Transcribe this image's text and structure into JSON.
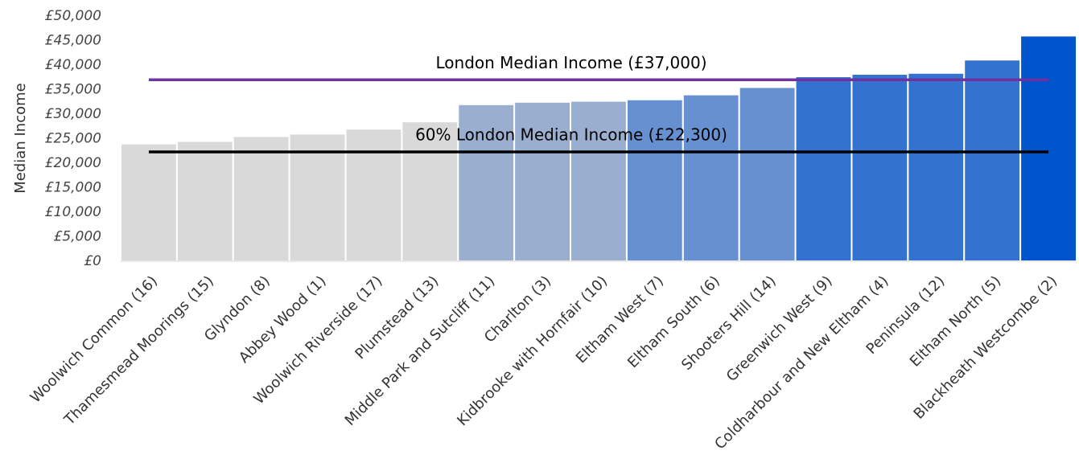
{
  "chart_data": {
    "type": "bar",
    "y_label": "Median Income",
    "categories": [
      "Woolwich Common (16)",
      "Thamesmead Moorings (15)",
      "Glyndon (8)",
      "Abbey Wood (1)",
      "Woolwich Riverside (17)",
      "Plumstead (13)",
      "Middle Park and Sutcliff (11)",
      "Charlton (3)",
      "Kidbrooke with Hornfair (10)",
      "Eltham West (7)",
      "Eltham South (6)",
      "Shooters Hill (14)",
      "Greenwich West (9)",
      "Coldharbour and New Eltham (4)",
      "Peninsula (12)",
      "Eltham North (5)",
      "Blackheath Westcombe (2)"
    ],
    "values": [
      24000,
      24500,
      25500,
      26000,
      27000,
      28500,
      32000,
      32500,
      32700,
      33000,
      34000,
      35500,
      37700,
      38200,
      38400,
      41100,
      46000
    ],
    "colors": [
      "#d9d9d9",
      "#d9d9d9",
      "#d9d9d9",
      "#d9d9d9",
      "#d9d9d9",
      "#d9d9d9",
      "#9aaed0",
      "#9aaed0",
      "#9aaed0",
      "#6790d0",
      "#6790d0",
      "#6790d0",
      "#3472d0",
      "#3472d0",
      "#3472d0",
      "#3472d0",
      "#0055cc"
    ],
    "reference_lines": [
      {
        "label": "London Median Income (£37,000)",
        "value": 37000,
        "color": "#7030a0"
      },
      {
        "label": "60% London Median Income (£22,300)",
        "value": 22300,
        "color": "#000000"
      }
    ],
    "ylim": [
      0,
      50000
    ],
    "yticks": [
      {
        "value": 0,
        "label": "£0"
      },
      {
        "value": 5000,
        "label": "£5,000"
      },
      {
        "value": 10000,
        "label": "£10,000"
      },
      {
        "value": 15000,
        "label": "£15,000"
      },
      {
        "value": 20000,
        "label": "£20,000"
      },
      {
        "value": 25000,
        "label": "£25,000"
      },
      {
        "value": 30000,
        "label": "£30,000"
      },
      {
        "value": 35000,
        "label": "£35,000"
      },
      {
        "value": 40000,
        "label": "£40,000"
      },
      {
        "value": 45000,
        "label": "£45,000"
      },
      {
        "value": 50000,
        "label": "£50,000"
      }
    ]
  }
}
